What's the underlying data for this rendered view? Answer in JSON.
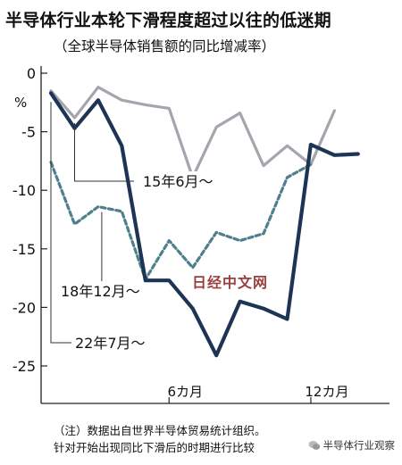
{
  "header": {
    "title": "半导体行业本轮下滑程度超过以往的低迷期",
    "subtitle": "（全球半导体销售额的同比增减率）"
  },
  "chart_data": {
    "type": "line",
    "unit": "%",
    "x": [
      1,
      2,
      3,
      4,
      5,
      6,
      7,
      8,
      9,
      10,
      11,
      12,
      13,
      14
    ],
    "x_ticks": [
      {
        "x": 6,
        "label": "6カ月"
      },
      {
        "x": 12,
        "label": "12カ月"
      }
    ],
    "ylim": [
      -25,
      0
    ],
    "y_ticks": [
      0,
      -5,
      -10,
      -15,
      -20,
      -25
    ],
    "series": [
      {
        "name": "15年6月～",
        "color": "#a5a5ad",
        "style": "solid",
        "values": [
          -1.5,
          -3.8,
          -1.2,
          -2.3,
          -2.7,
          -3.0,
          -8.9,
          -4.6,
          -3.4,
          -7.9,
          -6.2,
          -7.8,
          -3.2,
          null
        ]
      },
      {
        "name": "18年12月～",
        "color": "#4f7f8c",
        "style": "dashed",
        "values": [
          -7.6,
          -12.9,
          -11.4,
          -11.8,
          -17.6,
          -14.3,
          -16.6,
          -13.6,
          -14.3,
          -13.7,
          -8.9,
          -7.8,
          null,
          null
        ]
      },
      {
        "name": "22年7月～",
        "color": "#1d3455",
        "style": "solid",
        "values": [
          -1.7,
          -4.7,
          -2.3,
          -6.2,
          -17.7,
          -17.7,
          -20.1,
          -24.1,
          -19.5,
          -20.1,
          -21.0,
          -6.1,
          -7.0,
          -6.9
        ]
      }
    ]
  },
  "notes": {
    "line1": "（注）数据出自世界半导体贸易统计组织。",
    "line2": "针对开始出现同比下滑后的时期进行比较"
  },
  "watermark": "日经中文网",
  "source_label": "半导体行业观察"
}
